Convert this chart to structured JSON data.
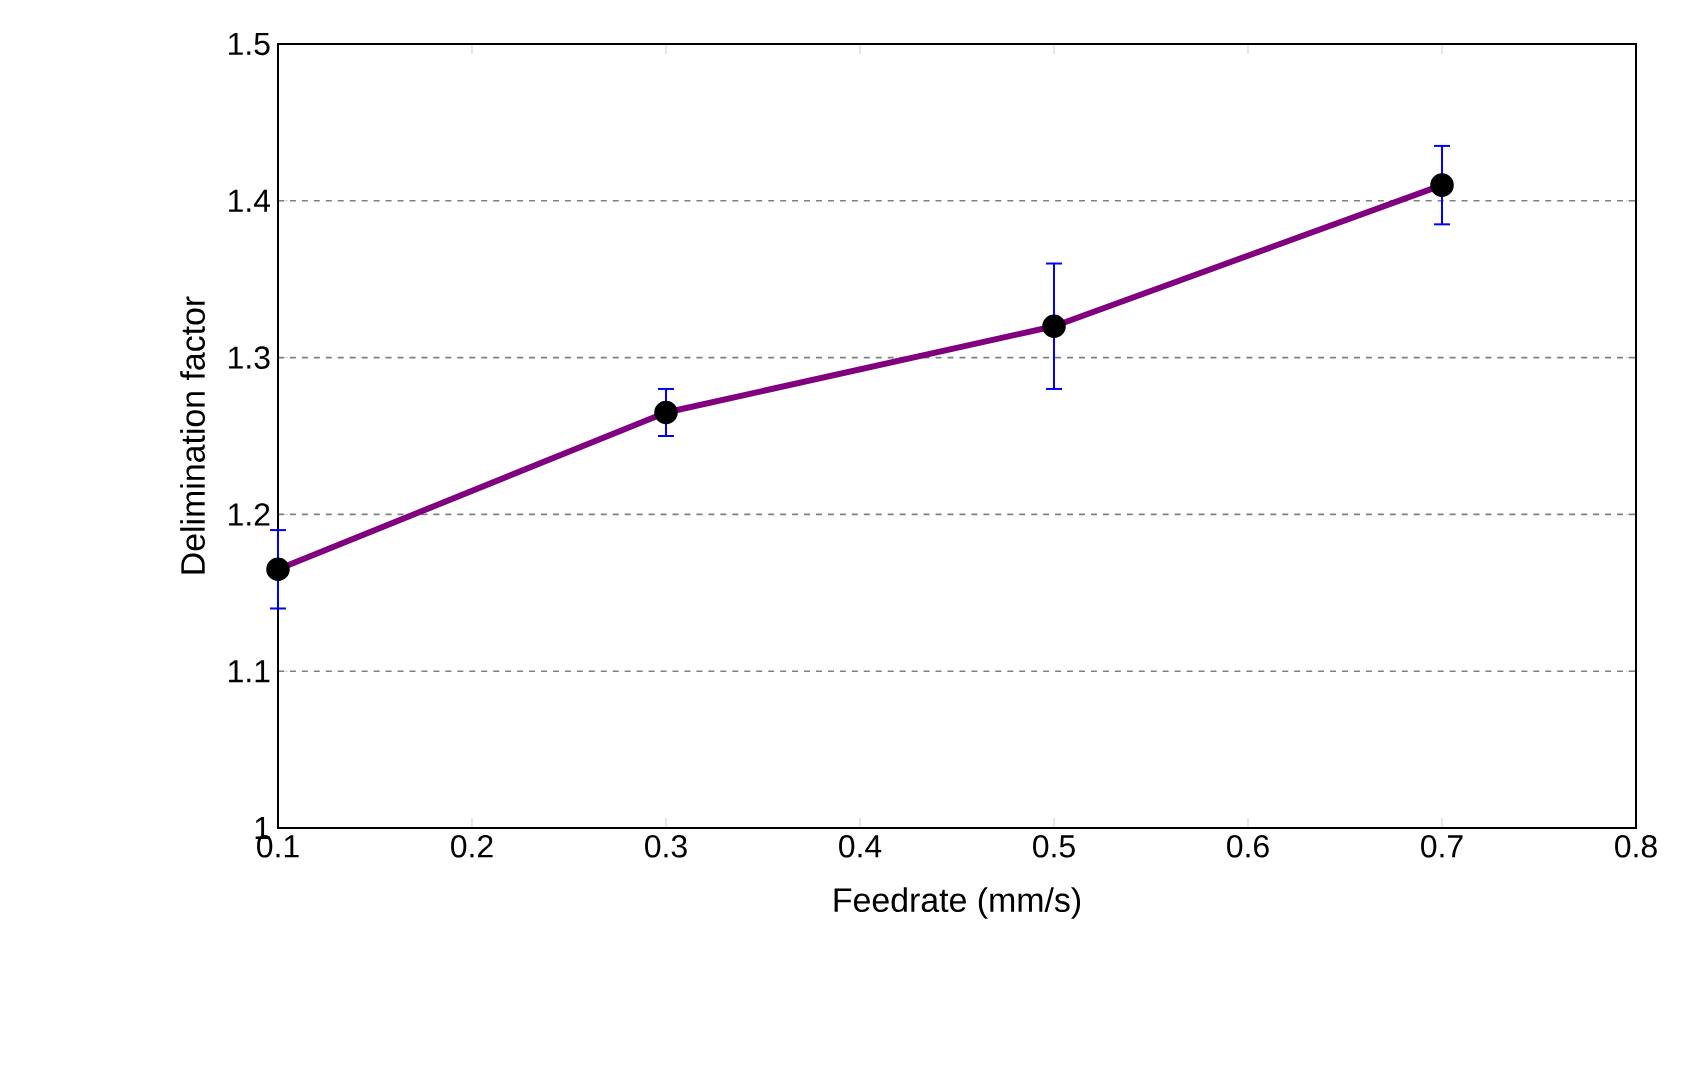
{
  "chart_data": {
    "type": "line",
    "xlabel": "Feedrate (mm/s)",
    "ylabel": "Delimination factor",
    "x": [
      0.1,
      0.3,
      0.5,
      0.7
    ],
    "series": [
      {
        "color": "#800080",
        "values": [
          1.165,
          1.265,
          1.32,
          1.41
        ],
        "errors": [
          0.025,
          0.015,
          0.04,
          0.025
        ]
      }
    ],
    "xlim": [
      0.1,
      0.8
    ],
    "xticks": [
      0.1,
      0.2,
      0.3,
      0.4,
      0.5,
      0.6,
      0.7,
      0.8
    ],
    "ylim": [
      1,
      1.5
    ],
    "yticks": [
      1,
      1.1,
      1.2,
      1.3,
      1.4,
      1.5
    ],
    "grid": "y",
    "marker": "circle",
    "line_style": "solid"
  }
}
